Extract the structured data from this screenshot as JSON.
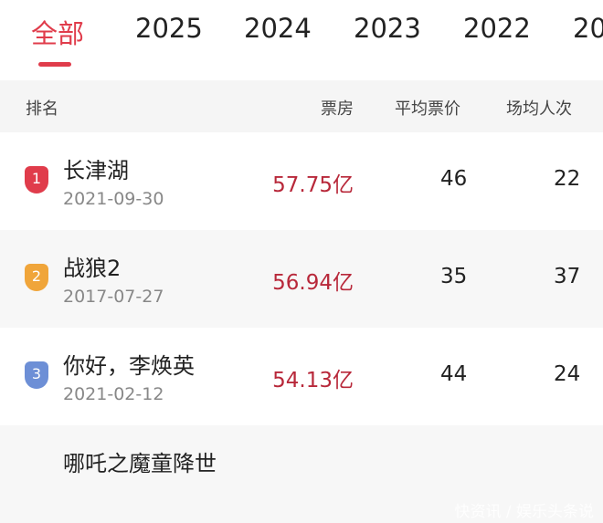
{
  "tabs": [
    "全部",
    "2025",
    "2024",
    "2023",
    "2022",
    "20"
  ],
  "header": {
    "rank": "排名",
    "box": "票房",
    "avg_price": "平均票价",
    "avg_viewers": "场均人次"
  },
  "rows": [
    {
      "rank": "1",
      "title": "长津湖",
      "date": "2021-09-30",
      "box": "57.75亿",
      "avg_price": "46",
      "avg_viewers": "22",
      "badge_color": "#e03c4b"
    },
    {
      "rank": "2",
      "title": "战狼2",
      "date": "2017-07-27",
      "box": "56.94亿",
      "avg_price": "35",
      "avg_viewers": "37",
      "badge_color": "#f0a53a"
    },
    {
      "rank": "3",
      "title": "你好，李焕英",
      "date": "2021-02-12",
      "box": "54.13亿",
      "avg_price": "44",
      "avg_viewers": "24",
      "badge_color": "#6d8fd6"
    },
    {
      "title": "哪吒之魔童降世"
    }
  ],
  "watermark": "快资讯 / 娱乐头条说"
}
